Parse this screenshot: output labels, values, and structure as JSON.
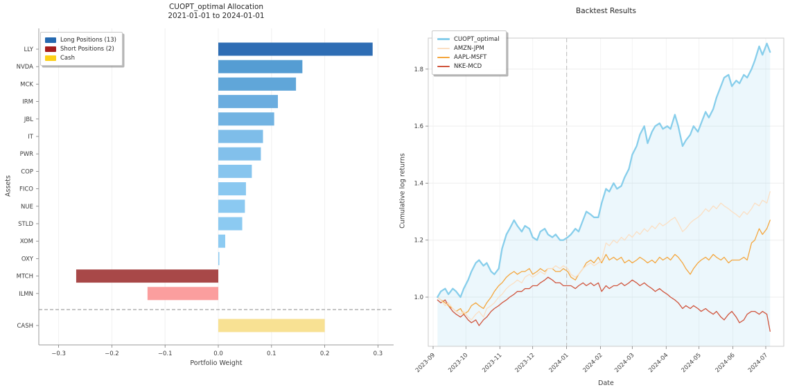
{
  "figure": {
    "background": "#ffffff"
  },
  "chart_data": [
    {
      "type": "bar",
      "orientation": "horizontal",
      "title": "CUOPT_optimal Allocation",
      "subtitle": "2021-01-01 to 2024-01-01",
      "xlabel": "Portfolio Weight",
      "ylabel": "Assets",
      "legend": [
        {
          "label": "Long Positions (13)",
          "color": "#2569b0"
        },
        {
          "label": "Short Positions (2)",
          "color": "#a51d1d"
        },
        {
          "label": "Cash",
          "color": "#fdd017"
        }
      ],
      "categories": [
        "LLY",
        "NVDA",
        "MCK",
        "IRM",
        "JBL",
        "IT",
        "PWR",
        "COP",
        "FICO",
        "NUE",
        "STLD",
        "XOM",
        "OXY",
        "MTCH",
        "ILMN",
        "CASH"
      ],
      "values": [
        0.29,
        0.158,
        0.146,
        0.112,
        0.105,
        0.084,
        0.08,
        0.063,
        0.052,
        0.05,
        0.045,
        0.013,
        0.002,
        -0.267,
        -0.133,
        0.2
      ],
      "colors": [
        "#2e6db4",
        "#559dd3",
        "#60a6d9",
        "#6baddf",
        "#72b3e2",
        "#7ebde9",
        "#82c0eb",
        "#87c5ee",
        "#8ac8f0",
        "#8bc9f1",
        "#8ccaf1",
        "#8dcbf2",
        "#8ecbf2",
        "#a84848",
        "#fb9e9e",
        "#f8e193"
      ],
      "xticks": {
        "values": [
          -0.3,
          -0.2,
          -0.1,
          0.0,
          0.1,
          0.2,
          0.3
        ],
        "labels": [
          "−0.3",
          "−0.2",
          "−0.1",
          "0.0",
          "0.1",
          "0.2",
          "0.3"
        ]
      },
      "xlim": [
        -0.34,
        0.34
      ],
      "separator_before": "CASH"
    },
    {
      "type": "line",
      "title": "Backtest Results",
      "xlabel": "Date",
      "ylabel": "Cumulative log returns",
      "yticks": {
        "values": [
          1.0,
          1.2,
          1.4,
          1.6,
          1.8
        ],
        "labels": [
          "1.0",
          "1.2",
          "1.4",
          "1.6",
          "1.8"
        ]
      },
      "xticks": {
        "labels": [
          "2023-09",
          "2023-10",
          "2023-11",
          "2023-12",
          "2024-01",
          "2024-02",
          "2024-03",
          "2024-04",
          "2024-05",
          "2024-06",
          "2024-07"
        ]
      },
      "vline_date": "2024-01-01",
      "dates": [
        "2023-09-05",
        "2023-09-08",
        "2023-09-12",
        "2023-09-15",
        "2023-09-19",
        "2023-09-22",
        "2023-09-26",
        "2023-09-29",
        "2023-10-03",
        "2023-10-06",
        "2023-10-10",
        "2023-10-13",
        "2023-10-17",
        "2023-10-20",
        "2023-10-24",
        "2023-10-27",
        "2023-10-31",
        "2023-11-03",
        "2023-11-07",
        "2023-11-10",
        "2023-11-14",
        "2023-11-17",
        "2023-11-21",
        "2023-11-24",
        "2023-11-28",
        "2023-12-01",
        "2023-12-05",
        "2023-12-08",
        "2023-12-12",
        "2023-12-15",
        "2023-12-19",
        "2023-12-22",
        "2023-12-26",
        "2023-12-29",
        "2024-01-02",
        "2024-01-05",
        "2024-01-09",
        "2024-01-12",
        "2024-01-16",
        "2024-01-19",
        "2024-01-23",
        "2024-01-26",
        "2024-01-30",
        "2024-02-02",
        "2024-02-06",
        "2024-02-09",
        "2024-02-13",
        "2024-02-16",
        "2024-02-20",
        "2024-02-23",
        "2024-02-27",
        "2024-03-01",
        "2024-03-05",
        "2024-03-08",
        "2024-03-12",
        "2024-03-15",
        "2024-03-19",
        "2024-03-22",
        "2024-03-26",
        "2024-03-29",
        "2024-04-02",
        "2024-04-05",
        "2024-04-09",
        "2024-04-12",
        "2024-04-16",
        "2024-04-19",
        "2024-04-23",
        "2024-04-26",
        "2024-04-30",
        "2024-05-03",
        "2024-05-07",
        "2024-05-10",
        "2024-05-14",
        "2024-05-17",
        "2024-05-21",
        "2024-05-24",
        "2024-05-28",
        "2024-05-31",
        "2024-06-04",
        "2024-06-07",
        "2024-06-11",
        "2024-06-14",
        "2024-06-18",
        "2024-06-21",
        "2024-06-25",
        "2024-06-28",
        "2024-07-02",
        "2024-07-05"
      ],
      "series": [
        {
          "name": "CUOPT_optimal",
          "color": "#87ceeb",
          "width": 2.3,
          "fill": "rgba(135,206,235,0.16)",
          "values": [
            1.0,
            1.02,
            1.03,
            1.01,
            1.03,
            1.02,
            1.0,
            1.03,
            1.06,
            1.09,
            1.12,
            1.13,
            1.11,
            1.12,
            1.09,
            1.08,
            1.1,
            1.17,
            1.22,
            1.24,
            1.27,
            1.25,
            1.23,
            1.25,
            1.24,
            1.21,
            1.2,
            1.23,
            1.24,
            1.22,
            1.21,
            1.22,
            1.2,
            1.2,
            1.21,
            1.22,
            1.24,
            1.23,
            1.27,
            1.3,
            1.29,
            1.28,
            1.28,
            1.33,
            1.38,
            1.37,
            1.4,
            1.38,
            1.39,
            1.42,
            1.45,
            1.5,
            1.53,
            1.57,
            1.6,
            1.54,
            1.58,
            1.6,
            1.61,
            1.59,
            1.6,
            1.59,
            1.64,
            1.6,
            1.53,
            1.55,
            1.57,
            1.6,
            1.58,
            1.61,
            1.65,
            1.63,
            1.66,
            1.7,
            1.74,
            1.77,
            1.78,
            1.74,
            1.76,
            1.75,
            1.78,
            1.77,
            1.8,
            1.83,
            1.88,
            1.85,
            1.89,
            1.86
          ]
        },
        {
          "name": "AMZN-JPM",
          "color": "#fbdfc3",
          "width": 1.3,
          "fill": null,
          "values": [
            1.0,
            0.99,
            0.97,
            0.98,
            0.96,
            0.95,
            0.94,
            0.95,
            0.93,
            0.92,
            0.94,
            0.95,
            0.93,
            0.96,
            0.97,
            0.98,
            1.0,
            1.01,
            1.03,
            1.04,
            1.05,
            1.06,
            1.05,
            1.07,
            1.08,
            1.07,
            1.08,
            1.09,
            1.08,
            1.1,
            1.1,
            1.11,
            1.1,
            1.11,
            1.1,
            1.08,
            1.07,
            1.08,
            1.1,
            1.11,
            1.12,
            1.11,
            1.12,
            1.13,
            1.19,
            1.18,
            1.2,
            1.19,
            1.21,
            1.2,
            1.22,
            1.21,
            1.23,
            1.22,
            1.24,
            1.23,
            1.25,
            1.24,
            1.26,
            1.25,
            1.26,
            1.27,
            1.28,
            1.26,
            1.23,
            1.24,
            1.26,
            1.27,
            1.28,
            1.29,
            1.31,
            1.3,
            1.32,
            1.31,
            1.33,
            1.32,
            1.31,
            1.3,
            1.29,
            1.28,
            1.3,
            1.29,
            1.31,
            1.33,
            1.32,
            1.34,
            1.33,
            1.37
          ]
        },
        {
          "name": "AAPL-MSFT",
          "color": "#f4a63d",
          "width": 1.3,
          "fill": null,
          "values": [
            1.0,
            0.99,
            0.98,
            0.97,
            0.96,
            0.95,
            0.96,
            0.94,
            0.95,
            0.97,
            0.98,
            0.97,
            0.96,
            0.98,
            1.0,
            1.02,
            1.04,
            1.05,
            1.07,
            1.08,
            1.09,
            1.08,
            1.09,
            1.09,
            1.1,
            1.08,
            1.09,
            1.1,
            1.09,
            1.1,
            1.1,
            1.09,
            1.09,
            1.1,
            1.09,
            1.07,
            1.06,
            1.08,
            1.1,
            1.12,
            1.13,
            1.12,
            1.14,
            1.12,
            1.15,
            1.13,
            1.14,
            1.13,
            1.14,
            1.12,
            1.13,
            1.12,
            1.13,
            1.14,
            1.13,
            1.12,
            1.13,
            1.12,
            1.14,
            1.13,
            1.14,
            1.13,
            1.15,
            1.14,
            1.12,
            1.1,
            1.08,
            1.1,
            1.12,
            1.13,
            1.14,
            1.13,
            1.15,
            1.14,
            1.13,
            1.14,
            1.12,
            1.13,
            1.13,
            1.13,
            1.14,
            1.13,
            1.19,
            1.2,
            1.24,
            1.22,
            1.24,
            1.27
          ]
        },
        {
          "name": "NKE-MCD",
          "color": "#d0543c",
          "width": 1.3,
          "fill": null,
          "values": [
            0.99,
            0.98,
            0.99,
            0.97,
            0.95,
            0.94,
            0.93,
            0.94,
            0.92,
            0.91,
            0.92,
            0.9,
            0.92,
            0.93,
            0.95,
            0.96,
            0.97,
            0.98,
            0.99,
            1.0,
            1.01,
            1.02,
            1.02,
            1.03,
            1.03,
            1.04,
            1.04,
            1.05,
            1.06,
            1.07,
            1.06,
            1.05,
            1.05,
            1.04,
            1.04,
            1.04,
            1.03,
            1.04,
            1.05,
            1.04,
            1.05,
            1.04,
            1.05,
            1.02,
            1.04,
            1.03,
            1.04,
            1.04,
            1.05,
            1.04,
            1.05,
            1.06,
            1.05,
            1.04,
            1.05,
            1.04,
            1.03,
            1.02,
            1.03,
            1.02,
            1.01,
            1.0,
            0.99,
            0.98,
            0.96,
            0.97,
            0.96,
            0.97,
            0.96,
            0.95,
            0.96,
            0.95,
            0.94,
            0.95,
            0.93,
            0.92,
            0.94,
            0.95,
            0.93,
            0.91,
            0.92,
            0.94,
            0.95,
            0.95,
            0.94,
            0.95,
            0.94,
            0.88
          ]
        }
      ]
    }
  ]
}
